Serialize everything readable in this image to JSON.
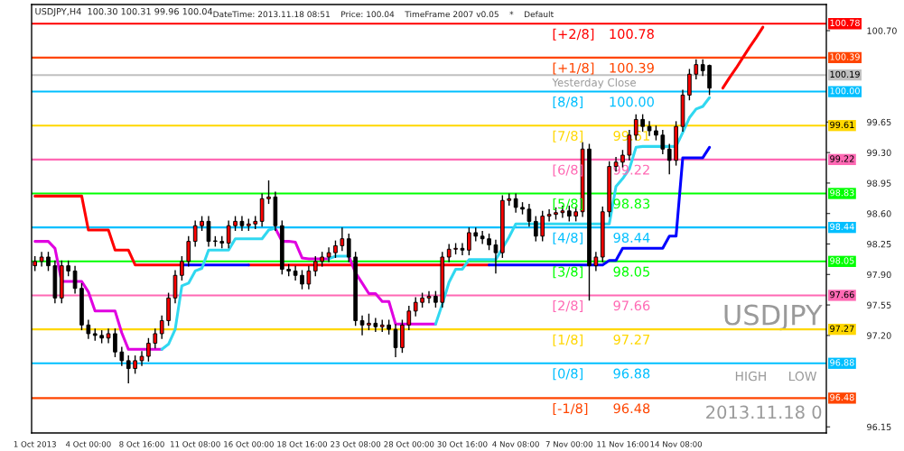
{
  "chart_data": {
    "type": "candlestick",
    "title": "USDJPY,H4  100.30 100.31 99.96 100.04",
    "subtitle": "DateTime: 2013.11.18 08:51    Price: 100.04    TimeFrame 2007 v0.05    *    Default",
    "categories": [
      "1 Oct 2013",
      null,
      null,
      null,
      null,
      null,
      null,
      null,
      "4 Oct 00:00",
      null,
      null,
      null,
      null,
      null,
      null,
      null,
      "8 Oct 16:00",
      null,
      null,
      null,
      null,
      null,
      null,
      null,
      "11 Oct 08:00",
      null,
      null,
      null,
      null,
      null,
      null,
      null,
      "16 Oct 00:00",
      null,
      null,
      null,
      null,
      null,
      null,
      null,
      "18 Oct 16:00",
      null,
      null,
      null,
      null,
      null,
      null,
      null,
      "23 Oct 08:00",
      null,
      null,
      null,
      null,
      null,
      null,
      null,
      "28 Oct 00:00",
      null,
      null,
      null,
      null,
      null,
      null,
      null,
      "30 Oct 16:00",
      null,
      null,
      null,
      null,
      null,
      null,
      null,
      "4 Nov 08:00",
      null,
      null,
      null,
      null,
      null,
      null,
      null,
      "7 Nov 00:00",
      null,
      null,
      null,
      null,
      null,
      null,
      null,
      "11 Nov 16:00",
      null,
      null,
      null,
      null,
      null,
      null,
      null,
      "14 Nov 08:00",
      null,
      null,
      null,
      null,
      null,
      null,
      null,
      null,
      null,
      null,
      null,
      null,
      null,
      null,
      null,
      null,
      null,
      null,
      null,
      null,
      null,
      null
    ],
    "ohlc": [
      [
        98.0,
        98.11,
        97.94,
        98.05
      ],
      [
        98.05,
        98.16,
        97.99,
        98.1
      ],
      [
        98.1,
        98.16,
        97.94,
        98.0
      ],
      [
        98.0,
        98.06,
        97.57,
        97.63
      ],
      [
        97.63,
        98.06,
        97.57,
        98.0
      ],
      [
        98.0,
        98.06,
        97.88,
        97.94
      ],
      [
        97.94,
        98.0,
        97.68,
        97.74
      ],
      [
        97.74,
        97.8,
        97.26,
        97.32
      ],
      [
        97.32,
        97.38,
        97.16,
        97.22
      ],
      [
        97.22,
        97.28,
        97.14,
        97.2
      ],
      [
        97.2,
        97.26,
        97.11,
        97.17
      ],
      [
        97.17,
        97.28,
        97.11,
        97.22
      ],
      [
        97.22,
        97.28,
        96.95,
        97.01
      ],
      [
        97.01,
        97.07,
        96.85,
        96.91
      ],
      [
        96.91,
        96.97,
        96.65,
        96.82
      ],
      [
        96.82,
        96.97,
        96.76,
        96.91
      ],
      [
        96.91,
        97.02,
        96.85,
        96.96
      ],
      [
        96.96,
        97.17,
        96.9,
        97.11
      ],
      [
        97.11,
        97.28,
        97.05,
        97.22
      ],
      [
        97.22,
        97.43,
        97.16,
        97.37
      ],
      [
        97.37,
        97.69,
        97.31,
        97.63
      ],
      [
        97.63,
        97.95,
        97.57,
        97.89
      ],
      [
        97.89,
        98.11,
        97.83,
        98.05
      ],
      [
        98.05,
        98.34,
        97.99,
        98.28
      ],
      [
        98.28,
        98.52,
        98.22,
        98.46
      ],
      [
        98.46,
        98.57,
        98.4,
        98.51
      ],
      [
        98.51,
        98.57,
        98.22,
        98.28
      ],
      [
        98.28,
        98.34,
        98.22,
        98.28
      ],
      [
        98.28,
        98.34,
        98.2,
        98.26
      ],
      [
        98.26,
        98.52,
        98.2,
        98.46
      ],
      [
        98.46,
        98.57,
        98.4,
        98.51
      ],
      [
        98.51,
        98.57,
        98.4,
        98.46
      ],
      [
        98.46,
        98.54,
        98.4,
        98.48
      ],
      [
        98.48,
        98.57,
        98.42,
        98.51
      ],
      [
        98.51,
        98.83,
        98.45,
        98.77
      ],
      [
        98.77,
        98.98,
        98.71,
        98.79
      ],
      [
        98.79,
        98.85,
        98.4,
        98.46
      ],
      [
        98.46,
        98.52,
        97.9,
        97.96
      ],
      [
        97.96,
        98.02,
        97.88,
        97.94
      ],
      [
        97.94,
        98.0,
        97.83,
        97.89
      ],
      [
        97.89,
        97.95,
        97.73,
        97.79
      ],
      [
        97.79,
        98.0,
        97.73,
        97.94
      ],
      [
        97.94,
        98.11,
        97.88,
        98.05
      ],
      [
        98.05,
        98.16,
        97.99,
        98.1
      ],
      [
        98.1,
        98.21,
        98.04,
        98.15
      ],
      [
        98.15,
        98.29,
        98.09,
        98.23
      ],
      [
        98.23,
        98.44,
        98.17,
        98.31
      ],
      [
        98.31,
        98.37,
        98.04,
        98.1
      ],
      [
        98.1,
        98.16,
        97.31,
        97.37
      ],
      [
        97.37,
        97.43,
        97.2,
        97.32
      ],
      [
        97.32,
        97.45,
        97.26,
        97.34
      ],
      [
        97.34,
        97.4,
        97.24,
        97.3
      ],
      [
        97.3,
        97.38,
        97.24,
        97.32
      ],
      [
        97.32,
        97.38,
        97.21,
        97.27
      ],
      [
        97.27,
        97.33,
        96.95,
        97.06
      ],
      [
        97.06,
        97.38,
        97.0,
        97.32
      ],
      [
        97.32,
        97.54,
        97.26,
        97.48
      ],
      [
        97.48,
        97.64,
        97.42,
        97.58
      ],
      [
        97.58,
        97.69,
        97.52,
        97.63
      ],
      [
        97.63,
        97.71,
        97.57,
        97.65
      ],
      [
        97.65,
        97.71,
        97.52,
        97.58
      ],
      [
        97.58,
        98.16,
        97.52,
        98.1
      ],
      [
        98.1,
        98.25,
        98.04,
        98.19
      ],
      [
        98.19,
        98.26,
        98.13,
        98.2
      ],
      [
        98.2,
        98.26,
        98.12,
        98.18
      ],
      [
        98.18,
        98.44,
        98.12,
        98.38
      ],
      [
        98.38,
        98.44,
        98.28,
        98.34
      ],
      [
        98.34,
        98.4,
        98.25,
        98.31
      ],
      [
        98.31,
        98.37,
        98.18,
        98.24
      ],
      [
        98.24,
        98.3,
        97.91,
        98.15
      ],
      [
        98.15,
        98.81,
        98.09,
        98.75
      ],
      [
        98.75,
        98.83,
        98.69,
        98.77
      ],
      [
        98.77,
        98.83,
        98.61,
        98.67
      ],
      [
        98.67,
        98.73,
        98.59,
        98.65
      ],
      [
        98.65,
        98.71,
        98.45,
        98.51
      ],
      [
        98.51,
        98.57,
        98.28,
        98.34
      ],
      [
        98.34,
        98.63,
        98.28,
        98.57
      ],
      [
        98.57,
        98.65,
        98.51,
        98.59
      ],
      [
        98.59,
        98.67,
        98.53,
        98.61
      ],
      [
        98.61,
        98.69,
        98.55,
        98.63
      ],
      [
        98.63,
        98.69,
        98.51,
        98.57
      ],
      [
        98.57,
        98.68,
        98.51,
        98.62
      ],
      [
        98.62,
        99.42,
        98.56,
        99.34
      ],
      [
        99.34,
        99.4,
        97.6,
        98.0
      ],
      [
        98.0,
        98.16,
        97.94,
        98.1
      ],
      [
        98.1,
        98.68,
        98.04,
        98.62
      ],
      [
        98.62,
        99.2,
        98.56,
        99.14
      ],
      [
        99.14,
        99.25,
        99.08,
        99.19
      ],
      [
        99.19,
        99.33,
        99.13,
        99.27
      ],
      [
        99.27,
        99.56,
        99.21,
        99.5
      ],
      [
        99.5,
        99.74,
        99.44,
        99.68
      ],
      [
        99.68,
        99.74,
        99.54,
        99.6
      ],
      [
        99.6,
        99.66,
        99.49,
        99.55
      ],
      [
        99.55,
        99.61,
        99.44,
        99.5
      ],
      [
        99.5,
        99.56,
        99.28,
        99.34
      ],
      [
        99.34,
        99.4,
        99.05,
        99.21
      ],
      [
        99.21,
        99.66,
        99.15,
        99.6
      ],
      [
        99.6,
        100.02,
        99.54,
        99.96
      ],
      [
        99.96,
        100.26,
        99.9,
        100.2
      ],
      [
        100.2,
        100.37,
        100.14,
        100.31
      ],
      [
        100.31,
        100.37,
        100.18,
        100.24
      ],
      [
        100.3,
        100.31,
        99.96,
        100.04
      ],
      null,
      null,
      null,
      null,
      null,
      null,
      null,
      null,
      null,
      null,
      null,
      null,
      null,
      null,
      null,
      null,
      null
    ],
    "colors": [
      "#ff0000",
      "#ff0000",
      "#000000",
      "#000000",
      "#ff0000",
      "#000000",
      "#000000",
      "#000000",
      "#000000",
      "#000000",
      "#000000",
      "#ff0000",
      "#000000",
      "#000000",
      "#000000",
      "#ff0000",
      "#ff0000",
      "#ff0000",
      "#ff0000",
      "#ff0000",
      "#ff0000",
      "#ff0000",
      "#ff0000",
      "#ff0000",
      "#ff0000",
      "#ff0000",
      "#000000",
      "#000000",
      "#000000",
      "#ff0000",
      "#ff0000",
      "#000000",
      "#ff0000",
      "#ff0000",
      "#ff0000",
      "#ff0000",
      "#000000",
      "#000000",
      "#000000",
      "#000000",
      "#000000",
      "#ff0000",
      "#ff0000",
      "#ff0000",
      "#ff0000",
      "#ff0000",
      "#ff0000",
      "#000000",
      "#000000",
      "#000000",
      "#ff0000",
      "#000000",
      "#ff0000",
      "#000000",
      "#000000",
      "#ff0000",
      "#ff0000",
      "#ff0000",
      "#ff0000",
      "#ff0000",
      "#000000",
      "#ff0000",
      "#ff0000",
      "#ff0000",
      "#000000",
      "#ff0000",
      "#000000",
      "#000000",
      "#000000",
      "#000000",
      "#ff0000",
      "#ff0000",
      "#000000",
      "#000000",
      "#000000",
      "#000000",
      "#ff0000",
      "#ff0000",
      "#ff0000",
      "#ff0000",
      "#000000",
      "#ff0000",
      "#ff0000",
      "#000000",
      "#ff0000",
      "#ff0000",
      "#ff0000",
      "#ff0000",
      "#ff0000",
      "#ff0000",
      "#ff0000",
      "#000000",
      "#000000",
      "#000000",
      "#000000",
      "#000000",
      "#ff0000",
      "#ff0000",
      "#ff0000",
      "#ff0000",
      "#000000",
      "#000000",
      null,
      null,
      null,
      null,
      null,
      null,
      null,
      null,
      null,
      null,
      null,
      null,
      null,
      null,
      null,
      null,
      null
    ],
    "series": [
      {
        "type": "line",
        "color": "#ff0000",
        "values": [
          98.8,
          98.8,
          98.8,
          98.8,
          98.8,
          98.8,
          98.8,
          98.8,
          98.41,
          98.41,
          98.41,
          98.41,
          98.18,
          98.18,
          98.18,
          98.01,
          98.01,
          98.01,
          98.01,
          98.01,
          98.01,
          98.01,
          98.01,
          null,
          null,
          null,
          null,
          null,
          null,
          null,
          null,
          null,
          98.01,
          98.01,
          98.01,
          98.01,
          98.01,
          98.01,
          98.01,
          98.01,
          98.01,
          98.01,
          98.01,
          98.01,
          98.01,
          98.01,
          98.01,
          98.01,
          98.01,
          98.01,
          98.01,
          98.01,
          98.01,
          98.01,
          98.01,
          98.01,
          98.01,
          98.01,
          98.01,
          98.01,
          98.01,
          98.01,
          98.01,
          98.01,
          98.01,
          98.01,
          98.01,
          98.01,
          98.01,
          null,
          null,
          null,
          null,
          null,
          null,
          null,
          null,
          null,
          null,
          null,
          null,
          null,
          null,
          null,
          null,
          null,
          null,
          null,
          null,
          null,
          null,
          null,
          null,
          null,
          null,
          null,
          null,
          null,
          null,
          null,
          null,
          null,
          null,
          null,
          null,
          null,
          null,
          null,
          null,
          null,
          null,
          null,
          null,
          null,
          null,
          null,
          null,
          null,
          null
        ]
      },
      {
        "type": "line",
        "color": "#0000ff",
        "values": [
          null,
          null,
          null,
          null,
          null,
          null,
          null,
          null,
          null,
          null,
          null,
          null,
          null,
          null,
          null,
          null,
          null,
          null,
          null,
          null,
          null,
          null,
          98.01,
          98.01,
          98.01,
          98.01,
          98.01,
          98.01,
          98.01,
          98.01,
          98.01,
          98.01,
          98.01,
          null,
          null,
          null,
          null,
          null,
          null,
          null,
          null,
          null,
          null,
          null,
          null,
          null,
          null,
          null,
          null,
          null,
          null,
          null,
          null,
          null,
          null,
          null,
          null,
          null,
          null,
          null,
          null,
          null,
          null,
          null,
          null,
          null,
          null,
          null,
          98.01,
          98.01,
          98.01,
          98.01,
          98.01,
          98.01,
          98.01,
          98.01,
          98.01,
          98.01,
          98.01,
          98.01,
          98.01,
          98.01,
          98.01,
          98.01,
          98.01,
          98.01,
          98.06,
          98.06,
          98.2,
          98.2,
          98.2,
          98.2,
          98.2,
          98.2,
          98.2,
          98.34,
          98.34,
          99.24,
          99.24,
          99.24,
          99.24,
          99.36,
          null,
          null,
          null,
          null,
          null,
          null,
          null,
          null,
          null,
          null,
          null,
          null,
          null,
          null,
          null,
          null,
          null
        ]
      },
      {
        "type": "line",
        "color": "#e000e0",
        "values": [
          98.28,
          98.28,
          98.28,
          98.2,
          97.82,
          97.82,
          97.82,
          97.82,
          97.7,
          97.48,
          97.48,
          97.48,
          97.48,
          97.23,
          97.04,
          97.04,
          97.04,
          97.04,
          97.04,
          97.04,
          null,
          null,
          null,
          null,
          null,
          null,
          null,
          null,
          null,
          null,
          null,
          null,
          null,
          null,
          null,
          null,
          98.43,
          98.28,
          98.28,
          98.27,
          98.09,
          98.08,
          98.08,
          98.08,
          98.08,
          null,
          null,
          98.11,
          97.92,
          97.8,
          97.68,
          97.68,
          97.59,
          97.59,
          97.33,
          97.33,
          97.33,
          97.33,
          97.33,
          97.33,
          97.33,
          null,
          null,
          null,
          null,
          null,
          null,
          null,
          null,
          null,
          null,
          null,
          null,
          null,
          null,
          null,
          null,
          null,
          null,
          null,
          null,
          null,
          null,
          null,
          null,
          null,
          null,
          null,
          null,
          null,
          null,
          null,
          null,
          null,
          null,
          null,
          null,
          null,
          null,
          null,
          null,
          null,
          null,
          null,
          null,
          null,
          null,
          null,
          null,
          null,
          null,
          null,
          null,
          null,
          null,
          null,
          null,
          null,
          null
        ]
      },
      {
        "type": "line",
        "color": "#30d8f0",
        "values": [
          null,
          null,
          null,
          null,
          null,
          null,
          null,
          null,
          null,
          null,
          null,
          null,
          null,
          null,
          null,
          null,
          null,
          null,
          null,
          97.04,
          97.1,
          97.27,
          97.77,
          97.8,
          97.94,
          97.97,
          98.18,
          98.18,
          98.18,
          98.18,
          98.31,
          98.31,
          98.31,
          98.31,
          98.31,
          98.41,
          98.43,
          null,
          null,
          null,
          null,
          null,
          null,
          null,
          98.08,
          98.11,
          98.11,
          98.11,
          null,
          null,
          null,
          null,
          null,
          null,
          null,
          null,
          null,
          null,
          null,
          null,
          97.33,
          97.56,
          97.81,
          97.96,
          97.96,
          98.07,
          98.07,
          98.07,
          98.07,
          98.07,
          98.2,
          98.33,
          98.48,
          98.48,
          98.48,
          98.48,
          98.48,
          98.48,
          98.48,
          98.48,
          98.48,
          98.48,
          98.48,
          98.48,
          98.48,
          98.48,
          98.48,
          98.91,
          99.0,
          99.11,
          99.36,
          99.37,
          99.37,
          99.37,
          99.37,
          99.37,
          99.37,
          99.53,
          99.7,
          99.8,
          99.83,
          99.93,
          null,
          null,
          null,
          null,
          null,
          null,
          null,
          null,
          null,
          null,
          null,
          null,
          null,
          null,
          null,
          null,
          null
        ]
      },
      {
        "type": "line",
        "color": "#ff0000",
        "values": [
          null,
          null,
          null,
          null,
          null,
          null,
          null,
          null,
          null,
          null,
          null,
          null,
          null,
          null,
          null,
          null,
          null,
          null,
          null,
          null,
          null,
          null,
          null,
          null,
          null,
          null,
          null,
          null,
          null,
          null,
          null,
          null,
          null,
          null,
          null,
          null,
          null,
          null,
          null,
          null,
          null,
          null,
          null,
          null,
          null,
          null,
          null,
          null,
          null,
          null,
          null,
          null,
          null,
          null,
          null,
          null,
          null,
          null,
          null,
          null,
          null,
          null,
          null,
          null,
          null,
          null,
          null,
          null,
          null,
          null,
          null,
          null,
          null,
          null,
          null,
          null,
          null,
          null,
          null,
          null,
          null,
          null,
          null,
          null,
          null,
          null,
          null,
          null,
          null,
          null,
          null,
          null,
          null,
          null,
          null,
          null,
          null,
          null,
          null,
          null,
          null,
          null,
          null,
          100.04,
          100.16,
          100.27,
          100.39,
          100.51,
          100.62,
          100.74,
          null,
          null,
          null,
          null,
          null,
          null,
          null,
          null,
          null
        ]
      }
    ],
    "ylim": [
      96.08,
      101.0
    ],
    "yticks": [
      {
        "value": 100.7,
        "label": "100.70"
      },
      {
        "value": 99.65,
        "label": "99.65"
      },
      {
        "value": 99.3,
        "label": "99.30"
      },
      98.95,
      {
        "value": 98.6,
        "label": "98.60"
      },
      98.25,
      {
        "value": 97.9,
        "label": "97.90"
      },
      97.55,
      {
        "value": 97.2,
        "label": "97.20"
      },
      96.15
    ],
    "ref_lines": [
      {
        "axis": "y",
        "value": 100.78,
        "label": "100.78",
        "color": "#ff0000"
      },
      {
        "axis": "y",
        "value": 100.39,
        "label": "100.39",
        "color": "#ff4500"
      },
      {
        "axis": "y",
        "value": 100.19,
        "label": "100.19",
        "color": "#c0c0c0"
      },
      {
        "axis": "y",
        "value": 100.0,
        "label": "100.00",
        "color": "#00bfff"
      },
      {
        "axis": "y",
        "value": 99.61,
        "label": "99.61",
        "color": "#ffd700"
      },
      {
        "axis": "y",
        "value": 99.22,
        "label": "99.22",
        "color": "#ff69b4"
      },
      {
        "axis": "y",
        "value": 98.83,
        "label": "98.83",
        "color": "#00ff00"
      },
      {
        "axis": "y",
        "value": 98.44,
        "label": "98.44",
        "color": "#00bfff"
      },
      {
        "axis": "y",
        "value": 98.05,
        "label": "98.05",
        "color": "#00ff00"
      },
      {
        "axis": "y",
        "value": 97.66,
        "label": "97.66",
        "color": "#ff69b4"
      },
      {
        "axis": "y",
        "value": 97.27,
        "label": "97.27",
        "color": "#ffd700"
      },
      {
        "axis": "y",
        "value": 96.88,
        "label": "96.88",
        "color": "#00bfff"
      },
      {
        "axis": "y",
        "value": 96.48,
        "label": "96.48",
        "color": "#ff4500"
      }
    ],
    "annotations": [
      "Yesterday Close",
      "USDJPY",
      "HIGH",
      "LOW",
      "2013.11.18 0",
      {
        "text": "[+2/8]",
        "y": 100.78
      },
      {
        "text": "100.78",
        "y": 100.78
      },
      {
        "text": "[+1/8]",
        "y": 100.39
      },
      {
        "text": "100.39",
        "y": 100.39
      },
      {
        "text": "[8/8]",
        "y": 100.0
      },
      {
        "text": "100.00",
        "y": 100.0
      },
      {
        "text": "[7/8]",
        "y": 99.61
      },
      {
        "text": "99.61",
        "y": 99.61
      },
      {
        "text": "[6/8]",
        "y": 99.22
      },
      {
        "text": "99.22",
        "y": 99.22
      },
      {
        "text": "[5/8]",
        "y": 98.83
      },
      {
        "text": "98.83",
        "y": 98.83
      },
      {
        "text": "[4/8]",
        "y": 98.44
      },
      {
        "text": "98.44",
        "y": 98.44
      },
      {
        "text": "[3/8]",
        "y": 98.05
      },
      {
        "text": "98.05",
        "y": 98.05
      },
      {
        "text": "[2/8]",
        "y": 97.66
      },
      {
        "text": "97.66",
        "y": 97.66
      },
      {
        "text": "[1/8]",
        "y": 97.27
      },
      {
        "text": "97.27",
        "y": 97.27
      },
      {
        "text": "[0/8]",
        "y": 96.88
      },
      {
        "text": "96.88",
        "y": 96.88
      },
      {
        "text": "[-1/8]",
        "y": 96.48
      },
      {
        "text": "96.48",
        "y": 96.48
      }
    ]
  }
}
